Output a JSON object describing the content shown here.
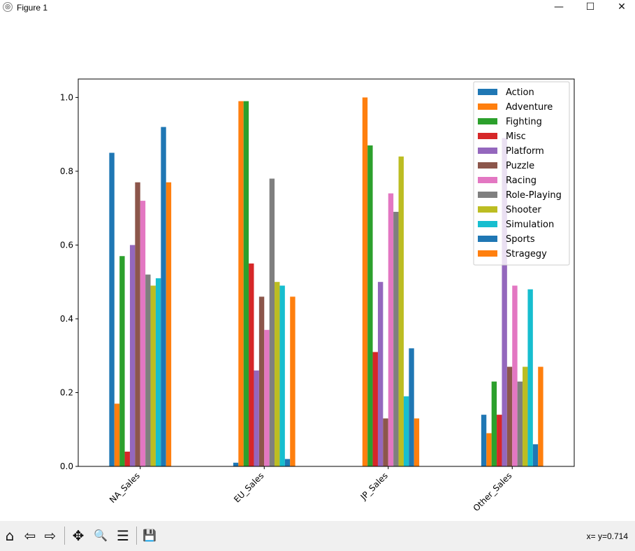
{
  "window": {
    "title": "Figure 1",
    "minimize": "—",
    "maximize": "☐",
    "close": "✕"
  },
  "toolbar": {
    "home": "⌂",
    "back": "⇦",
    "forward": "⇨",
    "pan": "✥",
    "zoom": "🔍",
    "configure": "☰",
    "save": "💾",
    "coords": "x= y=0.714"
  },
  "chart_data": {
    "type": "bar",
    "title": "",
    "xlabel": "",
    "ylabel": "",
    "categories": [
      "NA_Sales",
      "EU_Sales",
      "JP_Sales",
      "Other_Sales"
    ],
    "ylim": [
      0,
      1.05
    ],
    "yticks": [
      "0.0",
      "0.2",
      "0.4",
      "0.6",
      "0.8",
      "1.0"
    ],
    "legend_position": "top-right",
    "series": [
      {
        "name": "Action",
        "color": "#1f77b4",
        "values": [
          0.85,
          0.01,
          0.0,
          0.14
        ]
      },
      {
        "name": "Adventure",
        "color": "#ff7f0e",
        "values": [
          0.17,
          0.99,
          1.0,
          0.09
        ]
      },
      {
        "name": "Fighting",
        "color": "#2ca02c",
        "values": [
          0.57,
          0.99,
          0.87,
          0.23
        ]
      },
      {
        "name": "Misc",
        "color": "#d62728",
        "values": [
          0.04,
          0.55,
          0.31,
          0.14
        ]
      },
      {
        "name": "Platform",
        "color": "#9467bd",
        "values": [
          0.6,
          0.26,
          0.5,
          0.89
        ]
      },
      {
        "name": "Puzzle",
        "color": "#8c564b",
        "values": [
          0.77,
          0.46,
          0.13,
          0.27
        ]
      },
      {
        "name": "Racing",
        "color": "#e377c2",
        "values": [
          0.72,
          0.37,
          0.74,
          0.49
        ]
      },
      {
        "name": "Role-Playing",
        "color": "#7f7f7f",
        "values": [
          0.52,
          0.78,
          0.69,
          0.23
        ]
      },
      {
        "name": "Shooter",
        "color": "#bcbd22",
        "values": [
          0.49,
          0.5,
          0.84,
          0.27
        ]
      },
      {
        "name": "Simulation",
        "color": "#17becf",
        "values": [
          0.51,
          0.49,
          0.19,
          0.48
        ]
      },
      {
        "name": "Sports",
        "color": "#1f77b4",
        "values": [
          0.92,
          0.02,
          0.32,
          0.06
        ]
      },
      {
        "name": "Stragegy",
        "color": "#ff7f0e",
        "values": [
          0.77,
          0.46,
          0.13,
          0.27
        ]
      }
    ]
  }
}
